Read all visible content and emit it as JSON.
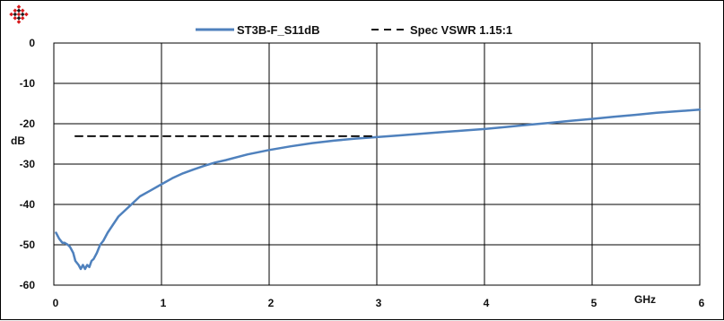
{
  "logo": {
    "icon": "red-diamond-logo",
    "primary_color": "#d7191c",
    "secondary_color": "#1a1a1a"
  },
  "chart_data": {
    "type": "line",
    "xlabel": "GHz",
    "ylabel": "dB",
    "xlim": [
      0,
      6
    ],
    "ylim": [
      -60,
      0
    ],
    "x_ticks": [
      "0",
      "1",
      "2",
      "3",
      "4",
      "5",
      "6"
    ],
    "y_ticks": [
      "0",
      "-10",
      "-20",
      "-30",
      "-40",
      "-50",
      "-60"
    ],
    "grid": true,
    "legend_position": "top",
    "series": [
      {
        "name": "ST3B-F_S11dB",
        "color": "#4f81bd",
        "style": "solid",
        "x": [
          0.02,
          0.05,
          0.08,
          0.1,
          0.13,
          0.15,
          0.18,
          0.2,
          0.23,
          0.25,
          0.27,
          0.29,
          0.31,
          0.33,
          0.35,
          0.37,
          0.4,
          0.43,
          0.46,
          0.5,
          0.55,
          0.6,
          0.7,
          0.8,
          0.9,
          1.0,
          1.1,
          1.2,
          1.3,
          1.4,
          1.5,
          1.6,
          1.8,
          2.0,
          2.2,
          2.4,
          2.6,
          2.8,
          3.0,
          3.2,
          3.4,
          3.6,
          3.8,
          4.0,
          4.2,
          4.4,
          4.6,
          4.8,
          5.0,
          5.2,
          5.4,
          5.6,
          5.8,
          6.0
        ],
        "y": [
          -47,
          -48.5,
          -49.5,
          -49.5,
          -50,
          -50.5,
          -52,
          -54,
          -55,
          -56,
          -55,
          -56,
          -55,
          -55.5,
          -54,
          -53.5,
          -52,
          -50,
          -49,
          -47,
          -45,
          -43,
          -40.5,
          -38,
          -36.5,
          -35,
          -33.5,
          -32.3,
          -31.3,
          -30.4,
          -29.6,
          -29,
          -27.6,
          -26.5,
          -25.6,
          -24.8,
          -24.2,
          -23.7,
          -23.3,
          -22.9,
          -22.5,
          -22.1,
          -21.7,
          -21.3,
          -20.8,
          -20.3,
          -19.8,
          -19.3,
          -18.8,
          -18.3,
          -17.8,
          -17.3,
          -16.9,
          -16.5
        ]
      },
      {
        "name": "Spec VSWR 1.15:1",
        "color": "#111111",
        "style": "dashed",
        "x": [
          0.2,
          3.0
        ],
        "y": [
          -23.1,
          -23.1
        ]
      }
    ]
  }
}
